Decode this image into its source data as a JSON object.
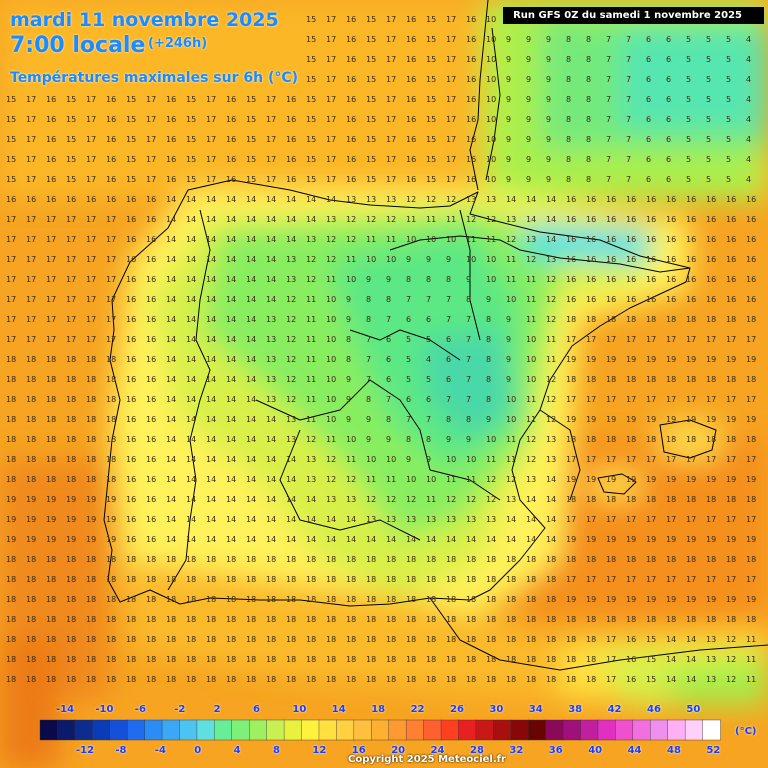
{
  "header": {
    "date": "mardi 11 novembre 2025",
    "time": "7:00 locale",
    "lead": "(+246h)",
    "parameter": "Températures maximales sur 6h (°C)",
    "run": "Run GFS 0Z du samedi 1 novembre 2025"
  },
  "legend": {
    "unit": "(°C)",
    "top_labels": [
      "-14",
      "-10",
      "-6",
      "-2",
      "2",
      "6",
      "10",
      "14",
      "18",
      "22",
      "26",
      "30",
      "34",
      "38",
      "42",
      "46",
      "50"
    ],
    "bottom_labels": [
      "-12",
      "-8",
      "-4",
      "0",
      "4",
      "8",
      "12",
      "16",
      "20",
      "24",
      "28",
      "32",
      "36",
      "40",
      "44",
      "48",
      "52"
    ],
    "colors": [
      "#0a0a4a",
      "#0b1a6b",
      "#0d2c8f",
      "#0a3cb8",
      "#1450d9",
      "#1e6cf0",
      "#2a8cf5",
      "#3aa8f5",
      "#4cc4f0",
      "#5ee0e0",
      "#66ee99",
      "#7df07a",
      "#9ef060",
      "#c8f050",
      "#e8f040",
      "#fff23c",
      "#ffe040",
      "#ffd040",
      "#ffc040",
      "#ffb030",
      "#ff9a30",
      "#ff8030",
      "#ff6030",
      "#ff4020",
      "#e82020",
      "#c81818",
      "#a81010",
      "#880808",
      "#680404",
      "#8a0a5a",
      "#a0107a",
      "#c020a0",
      "#e030c0",
      "#f050d0",
      "#f070e0",
      "#f090ee",
      "#ffb0f4",
      "#ffd0f8",
      "#ffffff"
    ]
  },
  "copyright": "Copyright 2025 Meteociel.fr"
}
